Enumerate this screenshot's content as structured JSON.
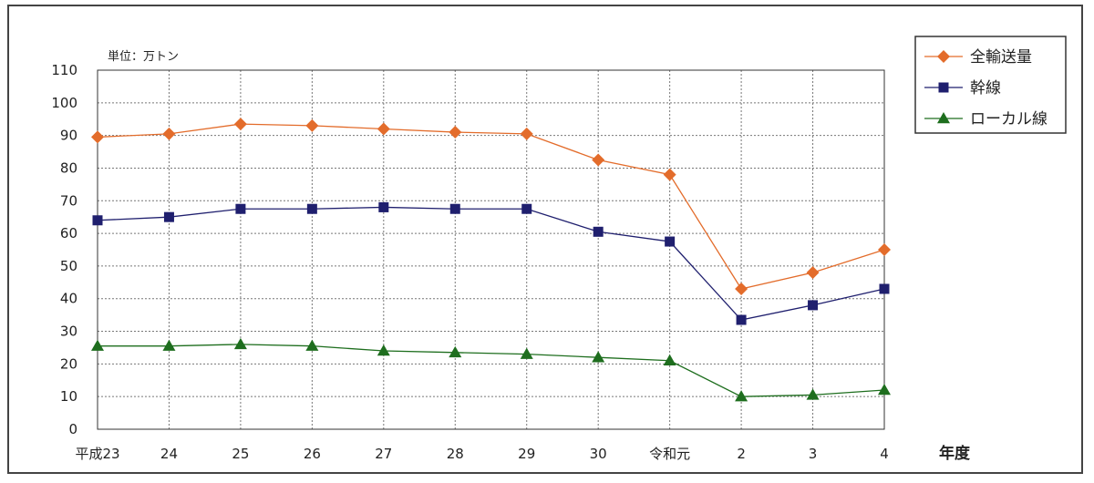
{
  "chart_data": {
    "type": "line",
    "unit_label": "単位：万トン",
    "xlabel": "年度",
    "ylabel": "",
    "categories": [
      "平成23",
      "24",
      "25",
      "26",
      "27",
      "28",
      "29",
      "30",
      "令和元",
      "2",
      "3",
      "4"
    ],
    "ylim": [
      0,
      110
    ],
    "yticks": [
      0,
      10,
      20,
      30,
      40,
      50,
      60,
      70,
      80,
      90,
      100,
      110
    ],
    "grid": true,
    "legend_position": "top-right",
    "series": [
      {
        "name": "全輸送量",
        "marker": "diamond",
        "color": "#E36C2B",
        "values": [
          89.5,
          90.5,
          93.5,
          93,
          92,
          91,
          90.5,
          82.5,
          78,
          43,
          48,
          55
        ]
      },
      {
        "name": "幹線",
        "marker": "square",
        "color": "#1F1F6E",
        "values": [
          64,
          65,
          67.5,
          67.5,
          68,
          67.5,
          67.5,
          60.5,
          57.5,
          33.5,
          38,
          43
        ]
      },
      {
        "name": "ローカル線",
        "marker": "triangle",
        "color": "#1E6E1E",
        "values": [
          25.5,
          25.5,
          26,
          25.5,
          24,
          23.5,
          23,
          22,
          21,
          10,
          10.5,
          12
        ]
      }
    ]
  }
}
